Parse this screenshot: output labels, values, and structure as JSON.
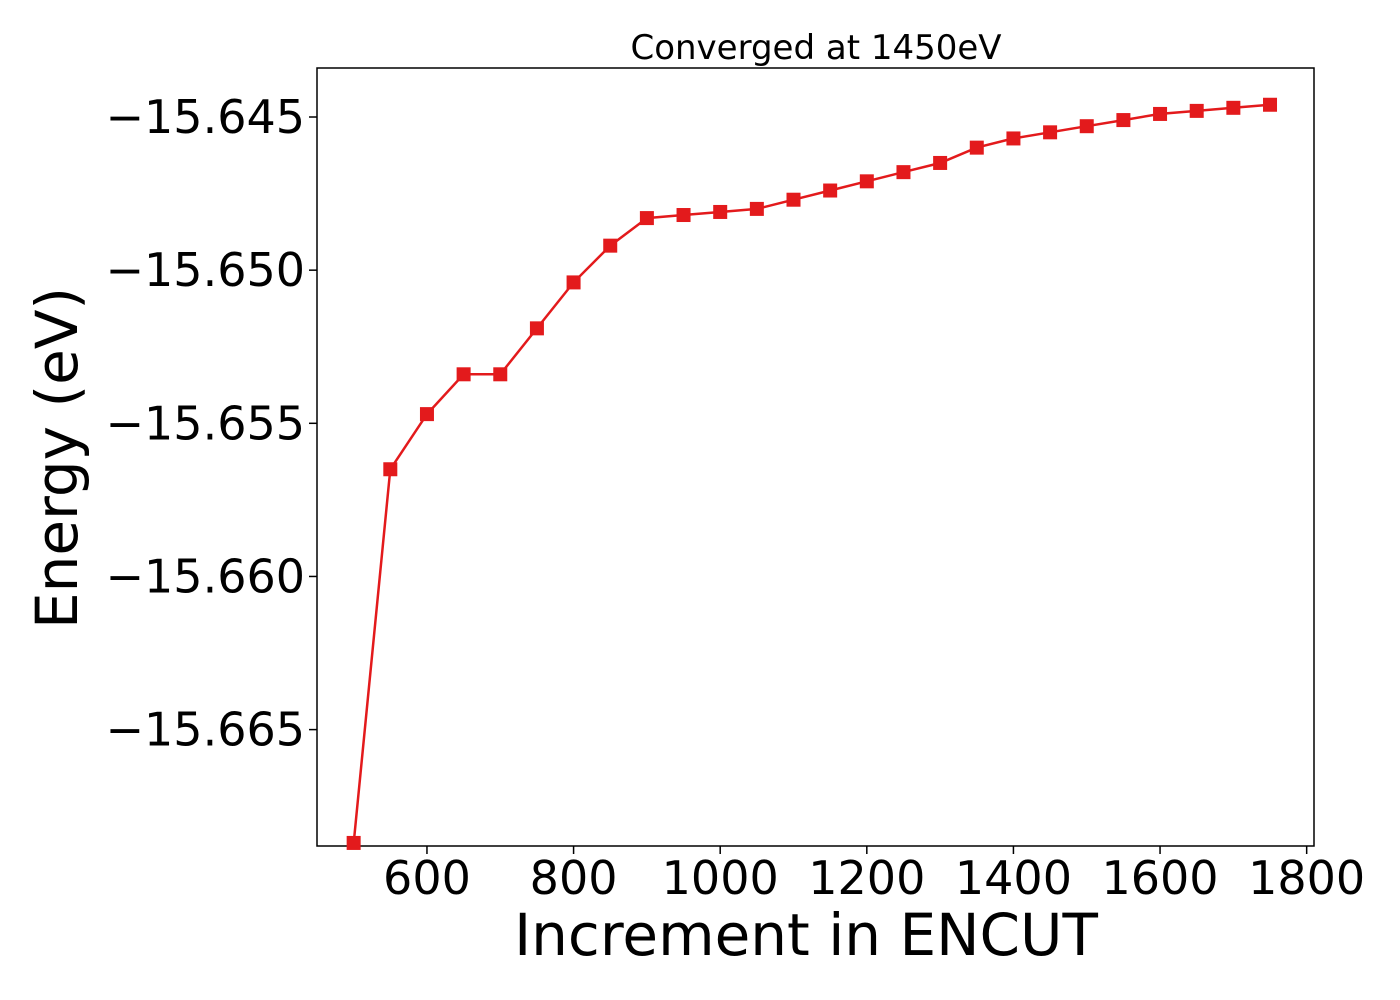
{
  "chart_data": {
    "type": "line",
    "title": "Converged at 1450eV",
    "xlabel": "Increment in ENCUT",
    "ylabel": "Energy (eV)",
    "grid": false,
    "legend": "none",
    "color": "#e31a1c",
    "marker": "square",
    "xlim": [
      450,
      1810
    ],
    "ylim": [
      -15.6688,
      -15.6434
    ],
    "xticks": [
      600,
      800,
      1000,
      1200,
      1400,
      1600,
      1800
    ],
    "xtick_labels": [
      "600",
      "800",
      "1000",
      "1200",
      "1400",
      "1600",
      "1800"
    ],
    "yticks": [
      -15.645,
      -15.65,
      -15.655,
      -15.66,
      -15.665
    ],
    "ytick_labels": [
      "−15.645",
      "−15.650",
      "−15.655",
      "−15.660",
      "−15.665"
    ],
    "series": [
      {
        "x": [
          500,
          550,
          600,
          650,
          700,
          750,
          800,
          850,
          900,
          950,
          1000,
          1050,
          1100,
          1150,
          1200,
          1250,
          1300,
          1350,
          1400,
          1450,
          1500,
          1550,
          1600,
          1650,
          1700,
          1750
        ],
        "values": [
          -15.6687,
          -15.6565,
          -15.6547,
          -15.6534,
          -15.6534,
          -15.6519,
          -15.6504,
          -15.6492,
          -15.6483,
          -15.6482,
          -15.6481,
          -15.648,
          -15.6477,
          -15.6474,
          -15.6471,
          -15.6468,
          -15.6465,
          -15.646,
          -15.6457,
          -15.6455,
          -15.6453,
          -15.6451,
          -15.6449,
          -15.6448,
          -15.6447,
          -15.6446
        ]
      }
    ]
  }
}
